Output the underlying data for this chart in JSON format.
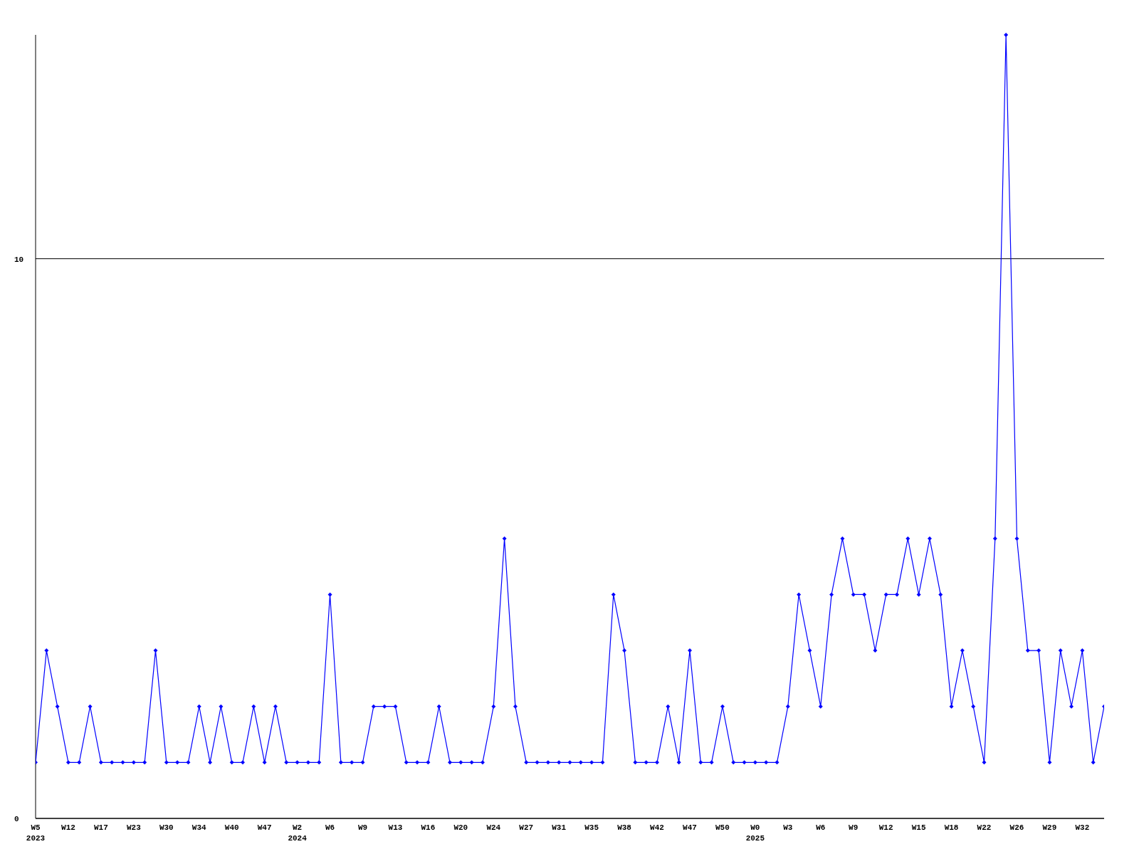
{
  "chart_data": {
    "type": "line",
    "categories": [
      "W5\n2023",
      null,
      null,
      "W12",
      null,
      null,
      "W17",
      null,
      null,
      "W23",
      null,
      null,
      "W30",
      null,
      null,
      "W34",
      null,
      null,
      "W40",
      null,
      null,
      "W47",
      null,
      null,
      "W2\n2024",
      null,
      null,
      "W6",
      null,
      null,
      "W9",
      null,
      null,
      "W13",
      null,
      null,
      "W16",
      null,
      null,
      "W20",
      null,
      null,
      "W24",
      null,
      null,
      "W27",
      null,
      null,
      "W31",
      null,
      null,
      "W35",
      null,
      null,
      "W38",
      null,
      null,
      "W42",
      null,
      null,
      "W47",
      null,
      null,
      "W50",
      null,
      null,
      "W0\n2025",
      null,
      null,
      "W3",
      null,
      null,
      "W6",
      null,
      null,
      "W9",
      null,
      null,
      "W12",
      null,
      null,
      "W15",
      null,
      null,
      "W18",
      null,
      null,
      "W22",
      null,
      null,
      "W26",
      null,
      null,
      "W29",
      null,
      null,
      "W32",
      null,
      null
    ],
    "series": [
      {
        "color": "#0000ff",
        "values": [
          1,
          3,
          2,
          1,
          1,
          2,
          1,
          1,
          1,
          1,
          1,
          3,
          1,
          1,
          1,
          2,
          1,
          2,
          1,
          1,
          2,
          1,
          2,
          1,
          1,
          1,
          1,
          4,
          1,
          1,
          1,
          2,
          2,
          2,
          1,
          1,
          1,
          2,
          1,
          1,
          1,
          1,
          2,
          5,
          2,
          1,
          1,
          1,
          1,
          1,
          1,
          1,
          1,
          4,
          3,
          1,
          1,
          1,
          2,
          1,
          3,
          1,
          1,
          2,
          1,
          1,
          1,
          1,
          1,
          2,
          4,
          3,
          2,
          4,
          5,
          4,
          4,
          3,
          4,
          4,
          5,
          4,
          5,
          4,
          2,
          3,
          2,
          1,
          5,
          14,
          5,
          3,
          3,
          1,
          3,
          2,
          3,
          1,
          2
        ]
      }
    ],
    "ylim": [
      0,
      14
    ],
    "yticks": [
      0,
      10
    ],
    "grid": "y",
    "marker": "diamond",
    "line_style": "solid"
  }
}
